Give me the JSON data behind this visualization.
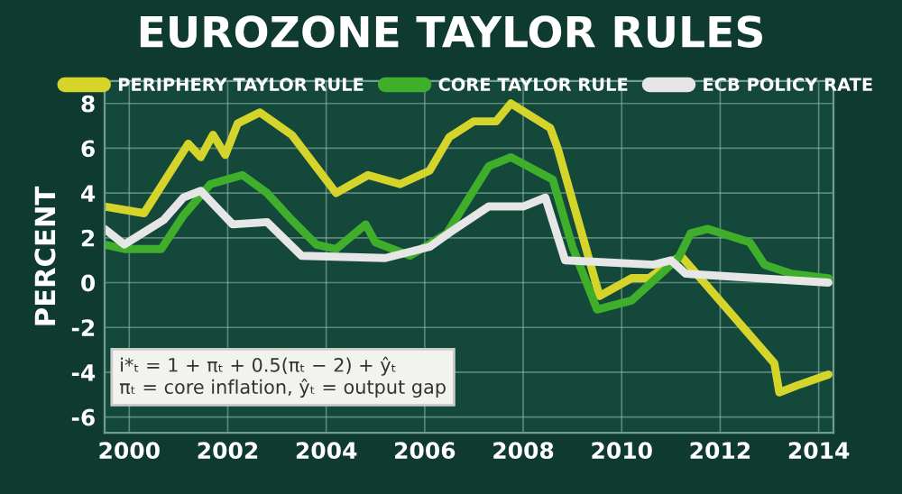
{
  "chart_data": {
    "type": "line",
    "title": "EUROZONE TAYLOR RULES",
    "ylabel": "PERCENT",
    "xlim": [
      1999.5,
      2014.3
    ],
    "xticks": [
      2000,
      2002,
      2004,
      2006,
      2008,
      2010,
      2012,
      2014
    ],
    "ylim": [
      -6.7,
      9
    ],
    "yticks": [
      -6,
      -4,
      -2,
      0,
      2,
      4,
      6,
      8
    ],
    "grid": true,
    "legend": "top",
    "marker": "none",
    "line_style": "solid",
    "annotations": [
      "i*ₜ = 1 + πₜ + 0.5(πₜ − 2) + ŷₜ",
      "πₜ = core inflation, ŷₜ = output gap"
    ],
    "series": [
      {
        "name": "PERIPHERY TAYLOR RULE",
        "color": "#d4d42a",
        "x": [
          1999.5,
          2000.3,
          2001.2,
          2001.45,
          2001.7,
          2001.95,
          2002.2,
          2002.65,
          2003.3,
          2004.2,
          2004.85,
          2005.5,
          2006.1,
          2006.5,
          2007.0,
          2007.45,
          2007.75,
          2008.55,
          2008.7,
          2009.55,
          2010.2,
          2010.55,
          2011.2,
          2013.1,
          2013.2,
          2013.55,
          2014.2
        ],
        "values": [
          3.4,
          3.1,
          6.2,
          5.6,
          6.6,
          5.7,
          7.1,
          7.6,
          6.6,
          4.0,
          4.8,
          4.4,
          5.0,
          6.5,
          7.2,
          7.2,
          8.0,
          6.9,
          6.0,
          -0.6,
          0.2,
          0.2,
          1.2,
          -3.6,
          -4.9,
          -4.6,
          -4.1
        ]
      },
      {
        "name": "CORE TAYLOR RULE",
        "color": "#3fae2a",
        "x": [
          1999.5,
          1999.9,
          2000.65,
          2001.1,
          2001.65,
          2002.3,
          2002.8,
          2003.3,
          2003.8,
          2004.2,
          2004.8,
          2005.0,
          2005.7,
          2006.45,
          2007.3,
          2007.75,
          2008.6,
          2009.0,
          2009.5,
          2010.2,
          2011.15,
          2011.4,
          2011.75,
          2012.6,
          2012.9,
          2013.45,
          2014.2
        ],
        "values": [
          1.7,
          1.5,
          1.5,
          3.0,
          4.4,
          4.8,
          4.0,
          2.8,
          1.7,
          1.5,
          2.6,
          1.8,
          1.2,
          2.2,
          5.2,
          5.6,
          4.6,
          1.6,
          -1.2,
          -0.8,
          1.1,
          2.2,
          2.4,
          1.8,
          0.8,
          0.4,
          0.2
        ]
      },
      {
        "name": "ECB POLICY RATE",
        "color": "#e6e6e6",
        "x": [
          1999.5,
          1999.9,
          2000.7,
          2001.1,
          2001.45,
          2002.1,
          2002.8,
          2003.5,
          2005.2,
          2006.1,
          2006.55,
          2007.3,
          2008.0,
          2008.45,
          2008.85,
          2010.65,
          2011.0,
          2011.3,
          2014.2
        ],
        "values": [
          2.4,
          1.7,
          2.8,
          3.8,
          4.1,
          2.6,
          2.7,
          1.2,
          1.1,
          1.6,
          2.3,
          3.4,
          3.4,
          3.8,
          1.0,
          0.8,
          1.0,
          0.4,
          0.0
        ]
      }
    ]
  }
}
